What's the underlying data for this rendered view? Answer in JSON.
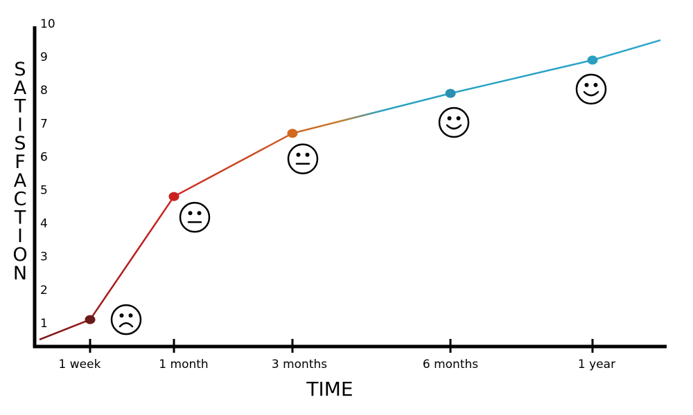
{
  "chart_data": {
    "type": "line",
    "title": "",
    "xlabel": "TIME",
    "ylabel": "SATISFACTION",
    "ylim": [
      0,
      10
    ],
    "yticks": [
      1,
      2,
      3,
      4,
      5,
      6,
      7,
      8,
      9,
      10
    ],
    "categories": [
      "1 week",
      "1 month",
      "3 months",
      "6 months",
      "1 year"
    ],
    "series": [
      {
        "values": [
          1.1,
          4.8,
          6.7,
          7.9,
          8.9
        ],
        "point_colors": [
          "#6b1a1a",
          "#cc2020",
          "#d2691e",
          "#2a8fb0",
          "#2a9fc0"
        ],
        "start_value": 0.5,
        "end_value": 9.5
      }
    ],
    "faces": [
      "frown",
      "neutral",
      "neutral",
      "smile",
      "smile"
    ],
    "grid": false
  }
}
